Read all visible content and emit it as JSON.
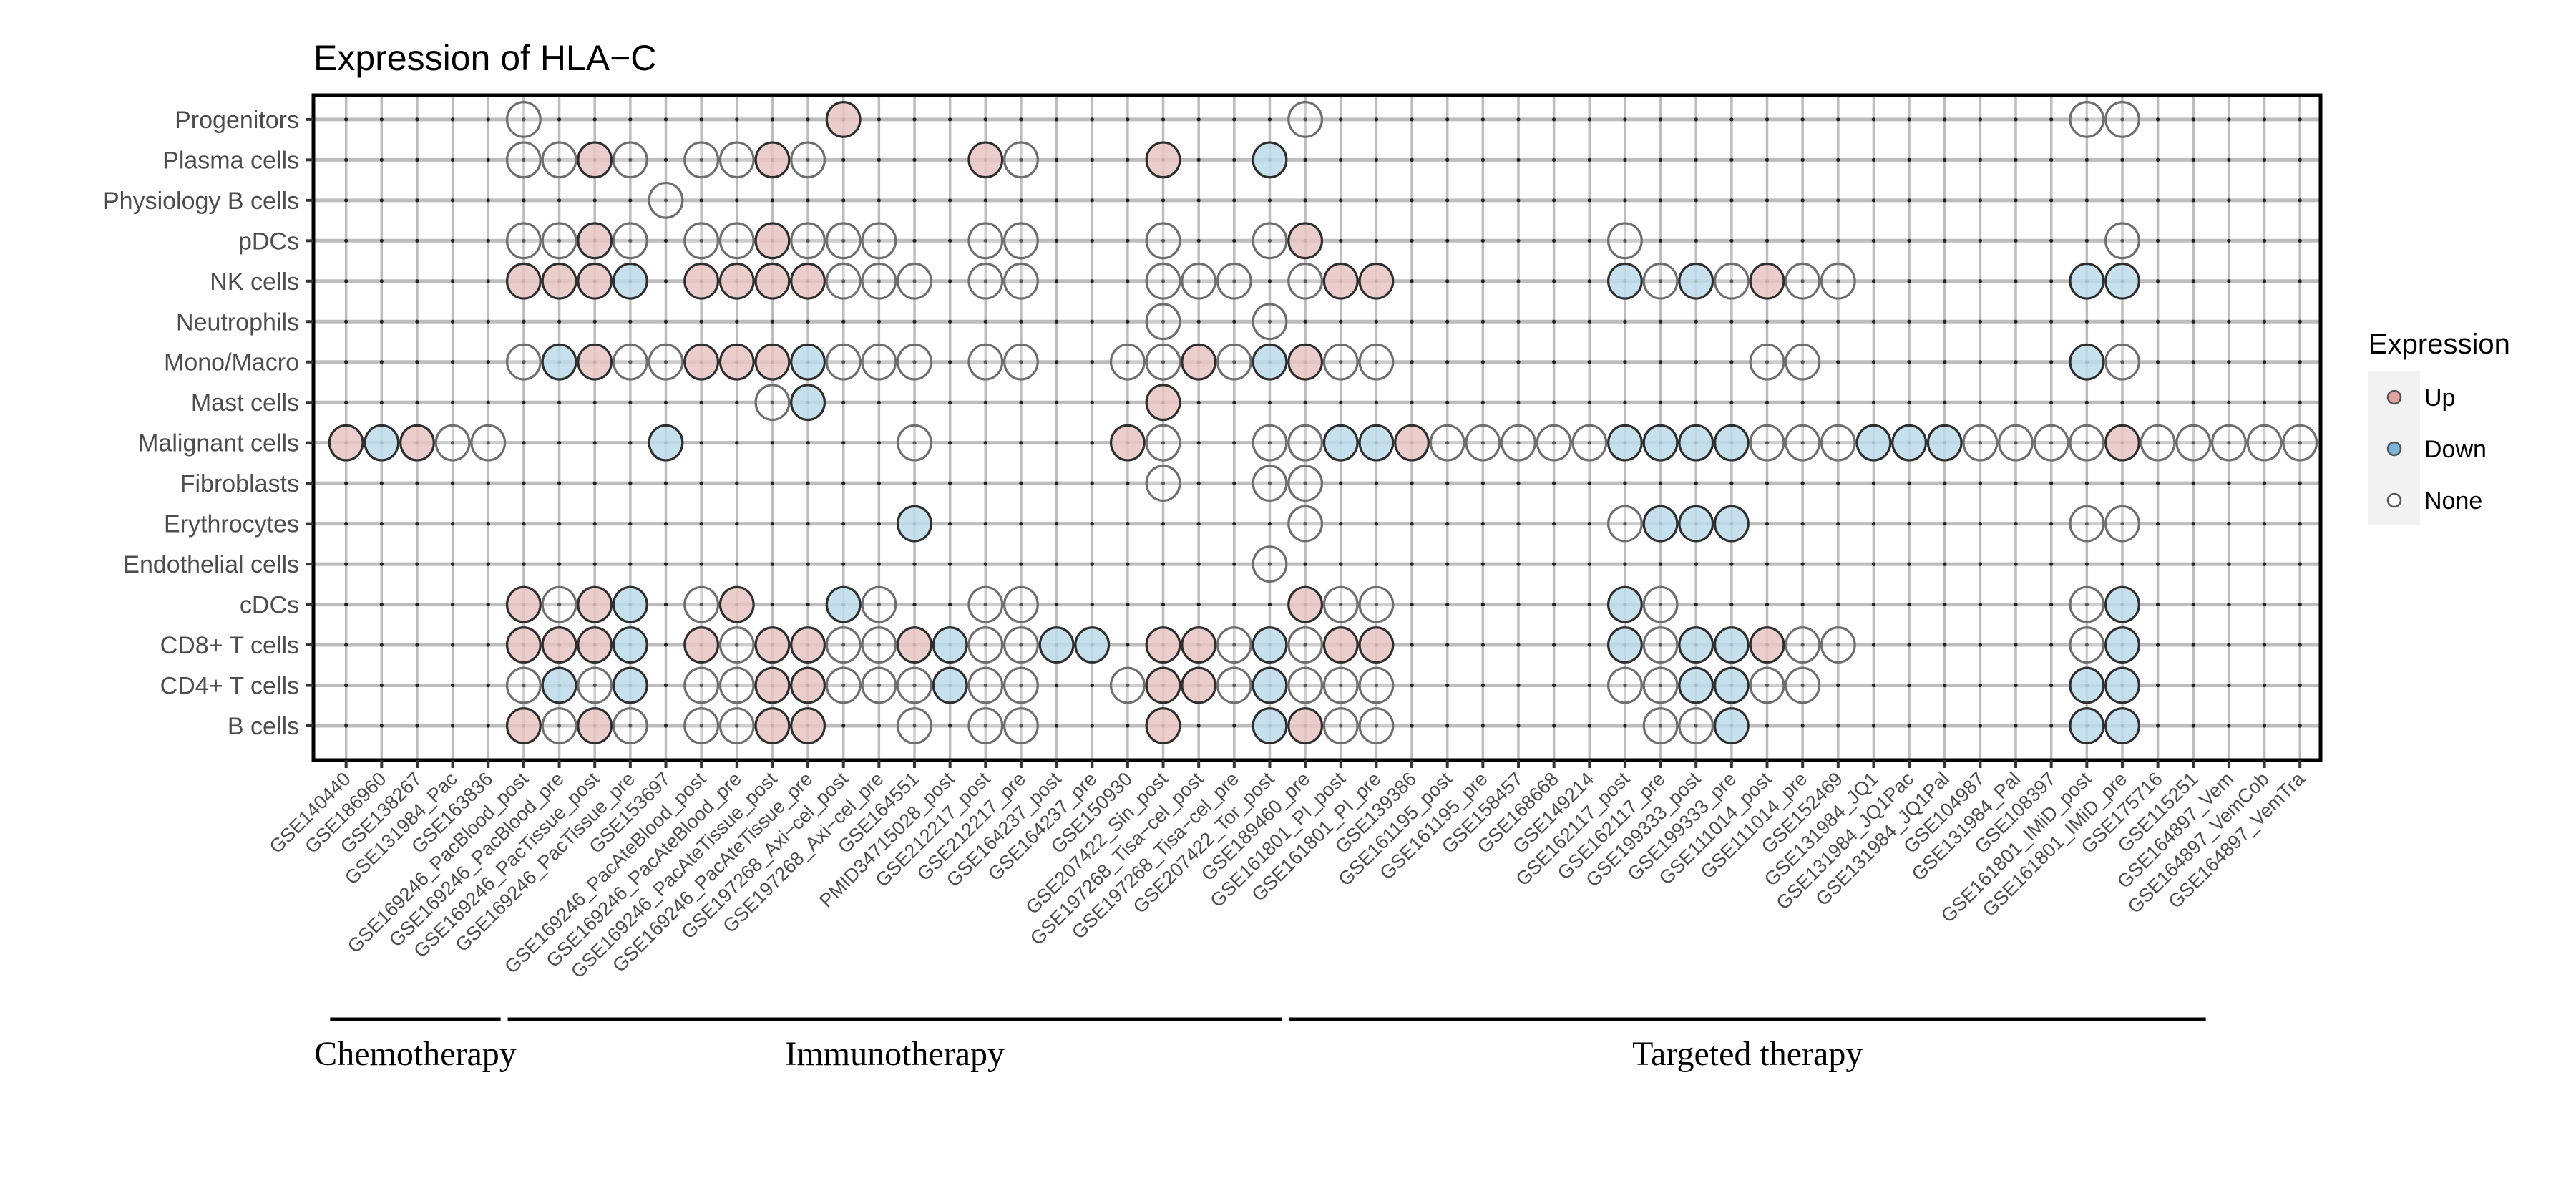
{
  "chart_data": {
    "type": "dot-matrix",
    "title": "Expression of HLA−C",
    "xlabel": "",
    "ylabel": "",
    "grid": true,
    "legend": {
      "title": "Expression",
      "position": "right",
      "entries": [
        {
          "key": "Up",
          "label": "Up",
          "color": "#e8c4c2",
          "key_color": "#e0a39d"
        },
        {
          "key": "Down",
          "label": "Down",
          "color": "#bcdaea",
          "key_color": "#79b4da"
        },
        {
          "key": "None",
          "label": "None",
          "color": "#ffffff",
          "key_color": "#ffffff"
        }
      ]
    },
    "rows": [
      "Progenitors",
      "Plasma cells",
      "Physiology B cells",
      "pDCs",
      "NK cells",
      "Neutrophils",
      "Mono/Macro",
      "Mast cells",
      "Malignant cells",
      "Fibroblasts",
      "Erythrocytes",
      "Endothelial cells",
      "cDCs",
      "CD8+ T cells",
      "CD4+ T cells",
      "B cells"
    ],
    "columns": [
      "GSE140440",
      "GSE186960",
      "GSE138267",
      "GSE131984_Pac",
      "GSE163836",
      "GSE169246_PacBlood_post",
      "GSE169246_PacBlood_pre",
      "GSE169246_PacTissue_post",
      "GSE169246_PacTissue_pre",
      "GSE153697",
      "GSE169246_PacAteBlood_post",
      "GSE169246_PacAteBlood_pre",
      "GSE169246_PacAteTissue_post",
      "GSE169246_PacAteTissue_pre",
      "GSE197268_Axi−cel_post",
      "GSE197268_Axi−cel_pre",
      "GSE164551",
      "PMID34715028_post",
      "GSE212217_post",
      "GSE212217_pre",
      "GSE164237_post",
      "GSE164237_pre",
      "GSE150930",
      "GSE207422_Sin_post",
      "GSE197268_Tisa−cel_post",
      "GSE197268_Tisa−cel_pre",
      "GSE207422_Tor_post",
      "GSE189460_pre",
      "GSE161801_PI_post",
      "GSE161801_PI_pre",
      "GSE139386",
      "GSE161195_post",
      "GSE161195_pre",
      "GSE158457",
      "GSE168668",
      "GSE149214",
      "GSE162117_post",
      "GSE162117_pre",
      "GSE199333_post",
      "GSE199333_pre",
      "GSE111014_post",
      "GSE111014_pre",
      "GSE152469",
      "GSE131984_JQ1",
      "GSE131984_JQ1Pac",
      "GSE131984_JQ1Pal",
      "GSE104987",
      "GSE131984_Pal",
      "GSE108397",
      "GSE161801_IMiD_post",
      "GSE161801_IMiD_pre",
      "GSE175716",
      "GSE115251",
      "GSE164897_Vem",
      "GSE164897_VemCob",
      "GSE164897_VemTra"
    ],
    "points": {
      "Progenitors": [
        [
          6,
          "None"
        ],
        [
          15,
          "Up"
        ],
        [
          28,
          "None"
        ],
        [
          50,
          "None"
        ],
        [
          51,
          "None"
        ]
      ],
      "Plasma cells": [
        [
          6,
          "None"
        ],
        [
          7,
          "None"
        ],
        [
          8,
          "Up"
        ],
        [
          9,
          "None"
        ],
        [
          11,
          "None"
        ],
        [
          12,
          "None"
        ],
        [
          13,
          "Up"
        ],
        [
          14,
          "None"
        ],
        [
          19,
          "Up"
        ],
        [
          20,
          "None"
        ],
        [
          24,
          "Up"
        ],
        [
          27,
          "Down"
        ]
      ],
      "Physiology B cells": [
        [
          10,
          "None"
        ]
      ],
      "pDCs": [
        [
          6,
          "None"
        ],
        [
          7,
          "None"
        ],
        [
          8,
          "Up"
        ],
        [
          9,
          "None"
        ],
        [
          11,
          "None"
        ],
        [
          12,
          "None"
        ],
        [
          13,
          "Up"
        ],
        [
          14,
          "None"
        ],
        [
          15,
          "None"
        ],
        [
          16,
          "None"
        ],
        [
          19,
          "None"
        ],
        [
          20,
          "None"
        ],
        [
          24,
          "None"
        ],
        [
          27,
          "None"
        ],
        [
          28,
          "Up"
        ],
        [
          37,
          "None"
        ],
        [
          51,
          "None"
        ]
      ],
      "NK cells": [
        [
          6,
          "Up"
        ],
        [
          7,
          "Up"
        ],
        [
          8,
          "Up"
        ],
        [
          9,
          "Down"
        ],
        [
          11,
          "Up"
        ],
        [
          12,
          "Up"
        ],
        [
          13,
          "Up"
        ],
        [
          14,
          "Up"
        ],
        [
          15,
          "None"
        ],
        [
          16,
          "None"
        ],
        [
          17,
          "None"
        ],
        [
          19,
          "None"
        ],
        [
          20,
          "None"
        ],
        [
          24,
          "None"
        ],
        [
          25,
          "None"
        ],
        [
          26,
          "None"
        ],
        [
          28,
          "None"
        ],
        [
          29,
          "Up"
        ],
        [
          30,
          "Up"
        ],
        [
          37,
          "Down"
        ],
        [
          38,
          "None"
        ],
        [
          39,
          "Down"
        ],
        [
          40,
          "None"
        ],
        [
          41,
          "Up"
        ],
        [
          42,
          "None"
        ],
        [
          43,
          "None"
        ],
        [
          50,
          "Down"
        ],
        [
          51,
          "Down"
        ]
      ],
      "Neutrophils": [
        [
          24,
          "None"
        ],
        [
          27,
          "None"
        ]
      ],
      "Mono/Macro": [
        [
          6,
          "None"
        ],
        [
          7,
          "Down"
        ],
        [
          8,
          "Up"
        ],
        [
          9,
          "None"
        ],
        [
          10,
          "None"
        ],
        [
          11,
          "Up"
        ],
        [
          12,
          "Up"
        ],
        [
          13,
          "Up"
        ],
        [
          14,
          "Down"
        ],
        [
          15,
          "None"
        ],
        [
          16,
          "None"
        ],
        [
          17,
          "None"
        ],
        [
          19,
          "None"
        ],
        [
          20,
          "None"
        ],
        [
          23,
          "None"
        ],
        [
          24,
          "None"
        ],
        [
          25,
          "Up"
        ],
        [
          26,
          "None"
        ],
        [
          27,
          "Down"
        ],
        [
          28,
          "Up"
        ],
        [
          29,
          "None"
        ],
        [
          30,
          "None"
        ],
        [
          41,
          "None"
        ],
        [
          42,
          "None"
        ],
        [
          50,
          "Down"
        ],
        [
          51,
          "None"
        ]
      ],
      "Mast cells": [
        [
          13,
          "None"
        ],
        [
          14,
          "Down"
        ],
        [
          24,
          "Up"
        ]
      ],
      "Malignant cells": [
        [
          1,
          "Up"
        ],
        [
          2,
          "Down"
        ],
        [
          3,
          "Up"
        ],
        [
          4,
          "None"
        ],
        [
          5,
          "None"
        ],
        [
          10,
          "Down"
        ],
        [
          17,
          "None"
        ],
        [
          23,
          "Up"
        ],
        [
          24,
          "None"
        ],
        [
          27,
          "None"
        ],
        [
          28,
          "None"
        ],
        [
          29,
          "Down"
        ],
        [
          30,
          "Down"
        ],
        [
          31,
          "Up"
        ],
        [
          32,
          "None"
        ],
        [
          33,
          "None"
        ],
        [
          34,
          "None"
        ],
        [
          35,
          "None"
        ],
        [
          36,
          "None"
        ],
        [
          37,
          "Down"
        ],
        [
          38,
          "Down"
        ],
        [
          39,
          "Down"
        ],
        [
          40,
          "Down"
        ],
        [
          41,
          "None"
        ],
        [
          42,
          "None"
        ],
        [
          43,
          "None"
        ],
        [
          44,
          "Down"
        ],
        [
          45,
          "Down"
        ],
        [
          46,
          "Down"
        ],
        [
          47,
          "None"
        ],
        [
          48,
          "None"
        ],
        [
          49,
          "None"
        ],
        [
          50,
          "None"
        ],
        [
          51,
          "Up"
        ],
        [
          52,
          "None"
        ],
        [
          53,
          "None"
        ],
        [
          54,
          "None"
        ],
        [
          55,
          "None"
        ],
        [
          56,
          "None"
        ]
      ],
      "Fibroblasts": [
        [
          24,
          "None"
        ],
        [
          27,
          "None"
        ],
        [
          28,
          "None"
        ]
      ],
      "Erythrocytes": [
        [
          17,
          "Down"
        ],
        [
          28,
          "None"
        ],
        [
          37,
          "None"
        ],
        [
          38,
          "Down"
        ],
        [
          39,
          "Down"
        ],
        [
          40,
          "Down"
        ],
        [
          50,
          "None"
        ],
        [
          51,
          "None"
        ]
      ],
      "Endothelial cells": [
        [
          27,
          "None"
        ]
      ],
      "cDCs": [
        [
          6,
          "Up"
        ],
        [
          7,
          "None"
        ],
        [
          8,
          "Up"
        ],
        [
          9,
          "Down"
        ],
        [
          11,
          "None"
        ],
        [
          12,
          "Up"
        ],
        [
          15,
          "Down"
        ],
        [
          16,
          "None"
        ],
        [
          19,
          "None"
        ],
        [
          20,
          "None"
        ],
        [
          28,
          "Up"
        ],
        [
          29,
          "None"
        ],
        [
          30,
          "None"
        ],
        [
          37,
          "Down"
        ],
        [
          38,
          "None"
        ],
        [
          50,
          "None"
        ],
        [
          51,
          "Down"
        ]
      ],
      "CD8+ T cells": [
        [
          6,
          "Up"
        ],
        [
          7,
          "Up"
        ],
        [
          8,
          "Up"
        ],
        [
          9,
          "Down"
        ],
        [
          11,
          "Up"
        ],
        [
          12,
          "None"
        ],
        [
          13,
          "Up"
        ],
        [
          14,
          "Up"
        ],
        [
          15,
          "None"
        ],
        [
          16,
          "None"
        ],
        [
          17,
          "Up"
        ],
        [
          18,
          "Down"
        ],
        [
          19,
          "None"
        ],
        [
          20,
          "None"
        ],
        [
          21,
          "Down"
        ],
        [
          22,
          "Down"
        ],
        [
          24,
          "Up"
        ],
        [
          25,
          "Up"
        ],
        [
          26,
          "None"
        ],
        [
          27,
          "Down"
        ],
        [
          28,
          "None"
        ],
        [
          29,
          "Up"
        ],
        [
          30,
          "Up"
        ],
        [
          37,
          "Down"
        ],
        [
          38,
          "None"
        ],
        [
          39,
          "Down"
        ],
        [
          40,
          "Down"
        ],
        [
          41,
          "Up"
        ],
        [
          42,
          "None"
        ],
        [
          43,
          "None"
        ],
        [
          50,
          "None"
        ],
        [
          51,
          "Down"
        ]
      ],
      "CD4+ T cells": [
        [
          6,
          "None"
        ],
        [
          7,
          "Down"
        ],
        [
          8,
          "None"
        ],
        [
          9,
          "Down"
        ],
        [
          11,
          "None"
        ],
        [
          12,
          "None"
        ],
        [
          13,
          "Up"
        ],
        [
          14,
          "Up"
        ],
        [
          15,
          "None"
        ],
        [
          16,
          "None"
        ],
        [
          17,
          "None"
        ],
        [
          18,
          "Down"
        ],
        [
          19,
          "None"
        ],
        [
          20,
          "None"
        ],
        [
          23,
          "None"
        ],
        [
          24,
          "Up"
        ],
        [
          25,
          "Up"
        ],
        [
          26,
          "None"
        ],
        [
          27,
          "Down"
        ],
        [
          28,
          "None"
        ],
        [
          29,
          "None"
        ],
        [
          30,
          "None"
        ],
        [
          37,
          "None"
        ],
        [
          38,
          "None"
        ],
        [
          39,
          "Down"
        ],
        [
          40,
          "Down"
        ],
        [
          41,
          "None"
        ],
        [
          42,
          "None"
        ],
        [
          50,
          "Down"
        ],
        [
          51,
          "Down"
        ]
      ],
      "B cells": [
        [
          6,
          "Up"
        ],
        [
          7,
          "None"
        ],
        [
          8,
          "Up"
        ],
        [
          9,
          "None"
        ],
        [
          11,
          "None"
        ],
        [
          12,
          "None"
        ],
        [
          13,
          "Up"
        ],
        [
          14,
          "Up"
        ],
        [
          17,
          "None"
        ],
        [
          19,
          "None"
        ],
        [
          20,
          "None"
        ],
        [
          24,
          "Up"
        ],
        [
          27,
          "Down"
        ],
        [
          28,
          "Up"
        ],
        [
          29,
          "None"
        ],
        [
          30,
          "None"
        ],
        [
          38,
          "None"
        ],
        [
          39,
          "None"
        ],
        [
          40,
          "Down"
        ],
        [
          50,
          "Down"
        ],
        [
          51,
          "Down"
        ]
      ]
    },
    "groups": [
      {
        "label": "Chemotherapy",
        "from_column": 1,
        "to_column": 5
      },
      {
        "label": "Immunotherapy",
        "from_column": 6,
        "to_column": 27
      },
      {
        "label": "Targeted therapy",
        "from_column": 28,
        "to_column": 53
      }
    ]
  }
}
